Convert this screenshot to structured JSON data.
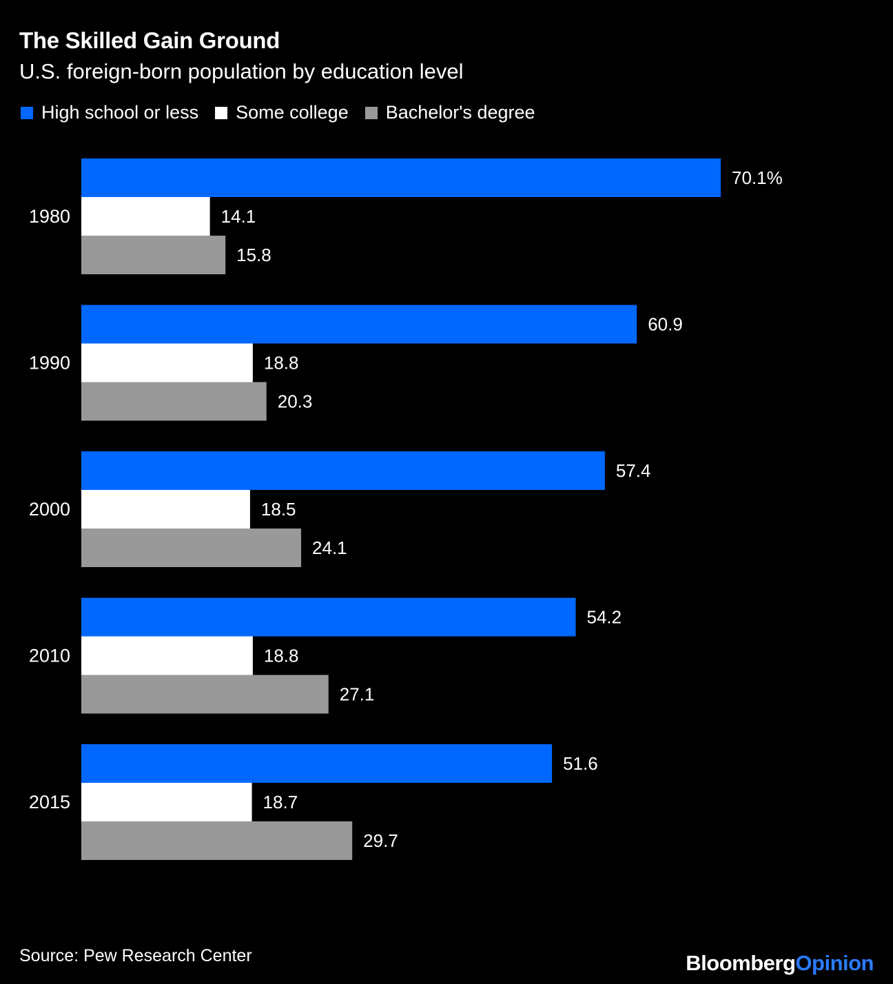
{
  "title": "The Skilled Gain Ground",
  "subtitle": "U.S. foreign-born population by education level",
  "source": "Source: Pew Research Center",
  "logo": {
    "brand": "Bloomberg",
    "section": "Opinion"
  },
  "colors": {
    "background": "#000000",
    "high_school": "#0068ff",
    "some_college": "#ffffff",
    "bachelors": "#999999",
    "text": "#ffffff",
    "logo_accent": "#2b7bff"
  },
  "chart_data": {
    "type": "bar",
    "orientation": "horizontal",
    "title": "The Skilled Gain Ground",
    "subtitle": "U.S. foreign-born population by education level",
    "unit": "%",
    "categories": [
      "1980",
      "1990",
      "2000",
      "2010",
      "2015"
    ],
    "series": [
      {
        "name": "High school or less",
        "color": "#0068ff",
        "values": [
          70.1,
          60.9,
          57.4,
          54.2,
          51.6
        ],
        "labels": [
          "70.1%",
          "60.9",
          "57.4",
          "54.2",
          "51.6"
        ]
      },
      {
        "name": "Some college",
        "color": "#ffffff",
        "values": [
          14.1,
          18.8,
          18.5,
          18.8,
          18.7
        ],
        "labels": [
          "14.1",
          "18.8",
          "18.5",
          "18.8",
          "18.7"
        ]
      },
      {
        "name": "Bachelor's degree",
        "color": "#999999",
        "values": [
          15.8,
          20.3,
          24.1,
          27.1,
          29.7
        ],
        "labels": [
          "15.8",
          "20.3",
          "24.1",
          "27.1",
          "29.7"
        ]
      }
    ],
    "xlim": [
      0,
      70.1
    ],
    "grid": false,
    "legend_position": "top-left"
  }
}
